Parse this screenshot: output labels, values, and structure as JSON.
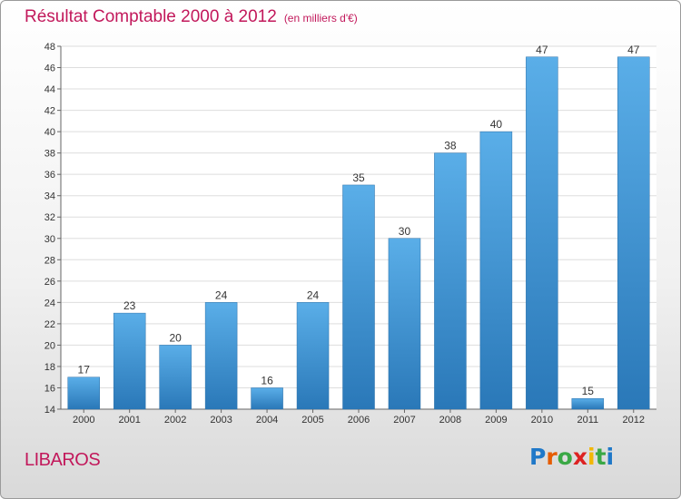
{
  "title": "Résultat Comptable 2000 à 2012",
  "subtitle": "(en milliers d'€)",
  "commune": "LIBAROS",
  "logo": {
    "letters": [
      "P",
      "r",
      "o",
      "x",
      "i",
      "t",
      "i"
    ],
    "colors": [
      "#1f78c8",
      "#e65c00",
      "#3aa845",
      "#d22",
      "#f2b705",
      "#3aa845",
      "#1f78c8"
    ]
  },
  "colors": {
    "bar_top": "#5aaee8",
    "bar_bottom": "#2a78b8",
    "title": "#c2185b",
    "grid": "#dddddd"
  },
  "chart_data": {
    "type": "bar",
    "title": "Résultat Comptable 2000 à 2012",
    "categories": [
      "2000",
      "2001",
      "2002",
      "2003",
      "2004",
      "2005",
      "2006",
      "2007",
      "2008",
      "2009",
      "2010",
      "2011",
      "2012"
    ],
    "values": [
      17,
      23,
      20,
      24,
      16,
      24,
      35,
      30,
      38,
      40,
      47,
      15,
      47
    ],
    "xlabel": "",
    "ylabel": "",
    "ylim": [
      14,
      48
    ],
    "yticks": [
      14,
      16,
      18,
      20,
      22,
      24,
      26,
      28,
      30,
      32,
      34,
      36,
      38,
      40,
      42,
      44,
      46,
      48
    ],
    "grid": true
  }
}
